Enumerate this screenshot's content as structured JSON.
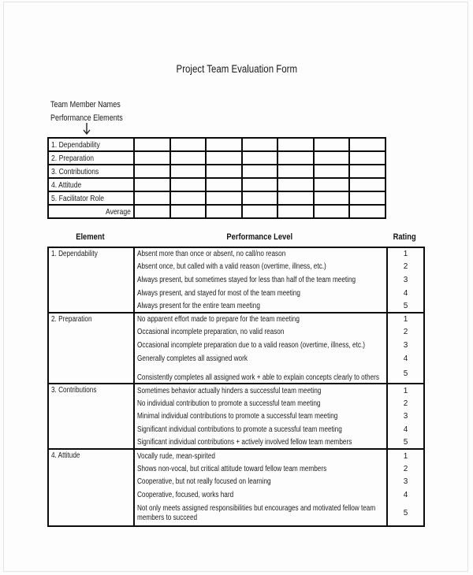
{
  "document": {
    "title": "Project Team Evaluation Form",
    "matrix_caption": {
      "line1": "Team Member Names",
      "line2": "Performance Elements"
    },
    "arrow_icon": "down-arrow"
  },
  "score_grid": {
    "row_labels": [
      "1. Dependability",
      "2. Preparation",
      "3. Contributions",
      "4. Attitude",
      "5. Facilitator Role"
    ],
    "footer_label": "Average",
    "member_column_count": 7
  },
  "rubric": {
    "header": {
      "element": "Element",
      "performance": "Performance Level",
      "rating": "Rating"
    },
    "sections": [
      {
        "element": "1. Dependability",
        "levels": [
          {
            "text": "Absent more than once or absent, no call/no reason",
            "rating": "1"
          },
          {
            "text": "Absent once, but called with a valid reason (overtime, illness, etc.)",
            "rating": "2"
          },
          {
            "text": "Always present, but sometimes stayed for less than half of the team meeting",
            "rating": "3"
          },
          {
            "text": "Always present, and stayed for most of the team meeting",
            "rating": "4"
          },
          {
            "text": "Always present for the entire team meeting",
            "rating": "5"
          }
        ]
      },
      {
        "element": "2. Preparation",
        "levels": [
          {
            "text": "No apparent effort made to prepare for the team meeting",
            "rating": "1"
          },
          {
            "text": "Occasional incomplete preparation, no valid reason",
            "rating": "2"
          },
          {
            "text": "Occasional incomplete preparation due to a valid reason (overtime, illness, etc.)",
            "rating": "3"
          },
          {
            "text": "Generally completes all assigned work",
            "rating": "4"
          },
          {
            "text": "Consistently completes all assigned work + able to explain concepts clearly to others",
            "rating": "5",
            "variant": "spacer-bottom"
          }
        ]
      },
      {
        "element": "3. Contributions",
        "levels": [
          {
            "text": "Sometimes behavior actually hinders a successful team meeting",
            "rating": "1"
          },
          {
            "text": "No individual contribution to promote a successful team meeting",
            "rating": "2"
          },
          {
            "text": "Minimal individual contributions to promote a successful team meeting",
            "rating": "3"
          },
          {
            "text": "Significant individual contributions to promote a sucessful team meeting",
            "rating": "4"
          },
          {
            "text": "Significant individual contributions + actively involved fellow team members",
            "rating": "5"
          }
        ]
      },
      {
        "element": "4. Attitude",
        "levels": [
          {
            "text": "Vocally rude, mean-spirited",
            "rating": "1"
          },
          {
            "text": "Shows non-vocal, but critical attitude toward fellow team members",
            "rating": "2"
          },
          {
            "text": "Cooperative, but not really focused on learning",
            "rating": "3"
          },
          {
            "text": "Cooperative, focused, works hard",
            "rating": "4"
          },
          {
            "text": "Not only meets assigned responsibilities but encourages and motivated fellow team members to succeed",
            "rating": "5",
            "variant": "two-line"
          }
        ]
      }
    ]
  }
}
